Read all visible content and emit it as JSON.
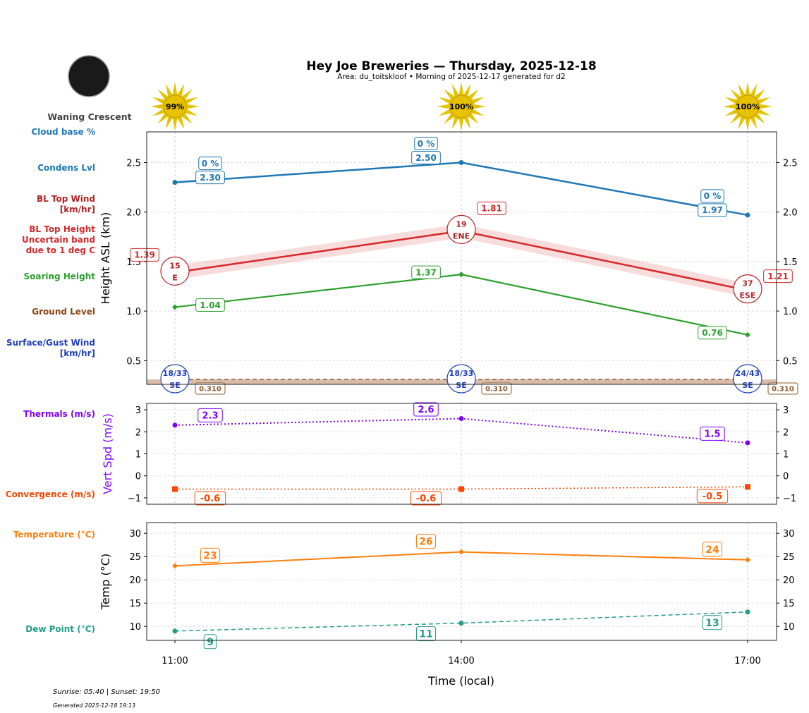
{
  "title": "Hey Joe Breweries — Thursday, 2025-12-18",
  "subtitle": "Area: du_toitskloof • Morning of 2025-12-17 generated for d2",
  "moon": {
    "phase": "Waning Crescent"
  },
  "footer": {
    "sun": "Sunrise: 05:40 | Sunset: 19:50",
    "generated": "Generated 2025-12-18 19:13"
  },
  "colors": {
    "cloud": "#1f77b4",
    "bltop": "#d62728",
    "soaring": "#2ca02c",
    "ground": "#8b4513",
    "surface_wind": "#1f3fbf",
    "thermals": "#7f00ff",
    "convergence": "#ff4500",
    "temperature": "#ff7f0e",
    "dewpoint": "#259b8b",
    "sun": "#e6c200"
  },
  "chart_data": [
    {
      "type": "line",
      "ylabel": "Height ASL (km)",
      "x": [
        "11:00",
        "14:00",
        "17:00"
      ],
      "ylim": [
        0.26,
        2.81
      ],
      "yticks": [
        "0.5",
        "1.0",
        "1.5",
        "2.0",
        "2.5"
      ],
      "sun_percent": [
        "99%",
        "100%",
        "100%"
      ],
      "left_labels": [
        "Cloud base %",
        "Condens Lvl",
        "BL Top Wind\n[km/hr]",
        "BL Top Height\nUncertain band\ndue to 1 deg C",
        "Soaring Height",
        "Ground Level",
        "Surface/Gust Wind\n[km/hr]"
      ],
      "series": {
        "cloud_base_pct": [
          "0 %",
          "0 %",
          "0 %"
        ],
        "condens_lvl": [
          2.3,
          2.5,
          1.97
        ],
        "bl_top": [
          1.39,
          1.81,
          1.21
        ],
        "bl_top_band": 0.07,
        "bl_top_wind": [
          {
            "speed": "15",
            "dir": "E"
          },
          {
            "speed": "19",
            "dir": "ENE"
          },
          {
            "speed": "37",
            "dir": "ESE"
          }
        ],
        "soaring": [
          1.04,
          1.37,
          0.76
        ],
        "ground": [
          0.31,
          0.31,
          0.31
        ],
        "surface_wind": [
          {
            "speed": "18/33",
            "dir": "SE"
          },
          {
            "speed": "18/33",
            "dir": "SE"
          },
          {
            "speed": "24/43",
            "dir": "SE"
          }
        ]
      }
    },
    {
      "type": "line",
      "ylabel": "Vert Spd (m/s)",
      "x": [
        "11:00",
        "14:00",
        "17:00"
      ],
      "ylim": [
        -1.29,
        3.29
      ],
      "yticks": [
        "−1",
        "0",
        "1",
        "2",
        "3"
      ],
      "left_labels": [
        "Thermals (m/s)",
        "Convergence (m/s)"
      ],
      "series": {
        "thermals": [
          2.3,
          2.6,
          1.5
        ],
        "convergence": [
          -0.6,
          -0.6,
          -0.5
        ]
      }
    },
    {
      "type": "line",
      "ylabel": "Temp (°C)",
      "xlabel": "Time (local)",
      "x": [
        "11:00",
        "14:00",
        "17:00"
      ],
      "ylim": [
        7.0,
        32.3
      ],
      "yticks": [
        "10",
        "15",
        "20",
        "25",
        "30"
      ],
      "left_labels": [
        "Temperature (°C)",
        "Dew Point (°C)"
      ],
      "series": {
        "temperature": [
          23,
          26,
          24.3
        ],
        "temperature_labels": [
          "23",
          "26",
          "24"
        ],
        "dewpoint": [
          9,
          10.7,
          13.1
        ],
        "dewpoint_labels": [
          "9",
          "11",
          "13"
        ]
      }
    }
  ]
}
